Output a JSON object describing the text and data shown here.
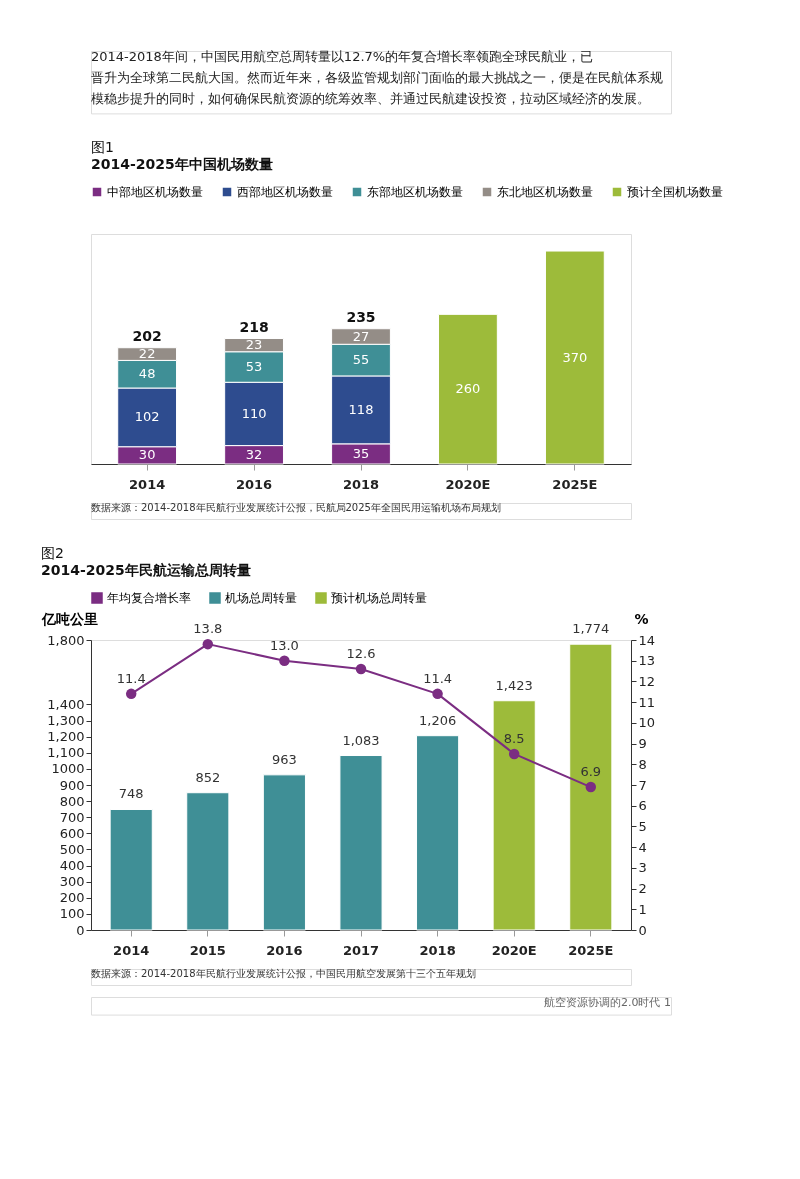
{
  "chart_data": [
    {
      "type": "bar",
      "title": "图1",
      "subtitle": "2014-2025年中国机场数量",
      "categories": [
        "2014",
        "2016",
        "2018",
        "2020E",
        "2025E"
      ],
      "stacked": true,
      "legend": "top",
      "data_labels": true,
      "totals": [
        "202",
        "218",
        "235",
        null,
        null
      ],
      "series": [
        {
          "name": "中部地区机场数量",
          "color": "#7b2d82",
          "values": [
            30,
            32,
            35,
            null,
            null
          ]
        },
        {
          "name": "西部地区机场数量",
          "color": "#2e4c8f",
          "values": [
            102,
            110,
            118,
            null,
            null
          ]
        },
        {
          "name": "东部地区机场数量",
          "color": "#3f8f96",
          "values": [
            48,
            53,
            55,
            null,
            null
          ]
        },
        {
          "name": "东北地区机场数量",
          "color": "#948d87",
          "values": [
            22,
            23,
            27,
            null,
            null
          ]
        },
        {
          "name": "预计全国机场数量",
          "color": "#9dbb3a",
          "values": [
            null,
            null,
            null,
            260,
            370
          ]
        }
      ],
      "annotations": [
        "2014-2018年间，中国民用航空总周转量以12.7%的年复合增长率领跑全球民航业，已晋升为全球第二民航大国。然而近年来，各级监管规划部门面临的最大挑战之一，便是在民航体系规模稳步提升的同时，如何确保民航资源的统筹效率、并通过民航建设投资，拉动区域经济的发展。",
        "数据来源：2014-2018年民航行业发展统计公报，民航局2025年全国民用运输机场布局规划"
      ]
    },
    {
      "type": "bar",
      "title": "图2",
      "subtitle": "2014-2025年民航运输总周转量",
      "categories": [
        "2014",
        "2015",
        "2016",
        "2017",
        "2018",
        "2020E",
        "2025E"
      ],
      "legend": "top",
      "ylabel": "亿吨公里",
      "y2label": "%",
      "marker": "circle",
      "ylim": [
        0,
        1800
      ],
      "yticks": [
        0,
        100,
        200,
        300,
        400,
        500,
        600,
        700,
        800,
        900,
        1000,
        {
          "value": 1100,
          "label": "1,100"
        },
        {
          "value": 1200,
          "label": "1,200"
        },
        {
          "value": 1300,
          "label": "1,300"
        },
        {
          "value": 1400,
          "label": "1,400"
        },
        {
          "value": 1800,
          "label": "1,800"
        }
      ],
      "y2lim": [
        0,
        14
      ],
      "y2ticks": [
        0,
        1,
        2,
        3,
        4,
        5,
        6,
        7,
        8,
        9,
        10,
        11,
        12,
        13,
        14
      ],
      "series": [
        {
          "name": "年均复合增长率",
          "type": "line",
          "axis": "y2",
          "color": "#7b2d82",
          "values": [
            11.4,
            13.8,
            13.0,
            12.6,
            11.4,
            8.5,
            6.9
          ],
          "value_labels": [
            "11.4",
            "13.8",
            "13.0",
            "12.6",
            "11.4",
            "8.5",
            "6.9"
          ]
        },
        {
          "name": "机场总周转量",
          "color": "#3f8f96",
          "values": [
            748,
            852,
            963,
            1083,
            1206,
            null,
            null
          ],
          "value_labels": [
            "748",
            "852",
            "963",
            "1,083",
            "1,206",
            null,
            null
          ]
        },
        {
          "name": "预计机场总周转量",
          "color": "#9dbb3a",
          "values": [
            null,
            null,
            null,
            null,
            null,
            1423,
            1774
          ],
          "value_labels": [
            null,
            null,
            null,
            null,
            null,
            "1,423",
            "1,774"
          ]
        }
      ],
      "annotations": [
        "数据来源：2014-2018年民航行业发展统计公报，中国民用航空发展第十三个五年规划",
        "航空资源协调的2.0时代  1"
      ]
    }
  ]
}
